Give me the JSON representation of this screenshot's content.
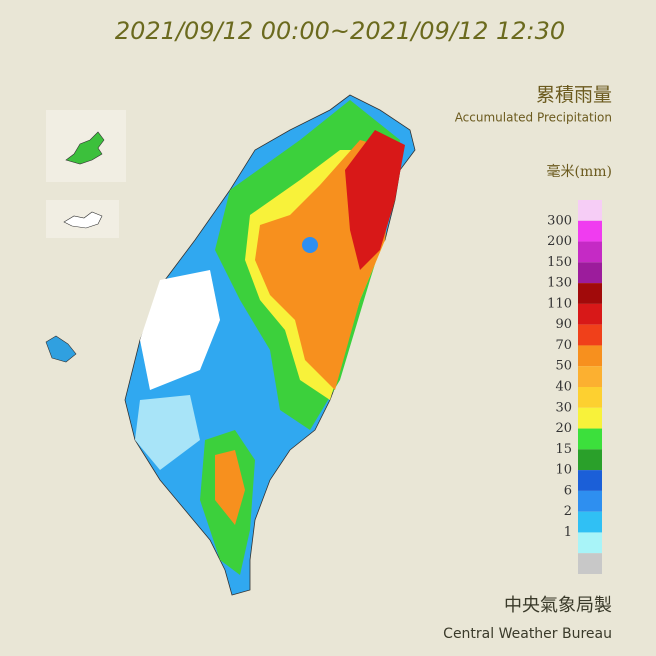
{
  "header": {
    "time_range": "2021/09/12 00:00~2021/09/12 12:30"
  },
  "title": {
    "zh": "累積雨量",
    "en": "Accumulated Precipitation"
  },
  "legend": {
    "unit": "毫米(mm)",
    "labels": [
      300,
      200,
      150,
      130,
      110,
      90,
      70,
      50,
      40,
      30,
      20,
      15,
      10,
      6,
      2,
      1
    ],
    "colors": [
      "#f6cdf6",
      "#f03cf0",
      "#c52ac5",
      "#9c1c9c",
      "#a10a0a",
      "#d81818",
      "#f0401a",
      "#f7901e",
      "#fcb030",
      "#fdd030",
      "#f8f23a",
      "#3ce03c",
      "#2aa02a",
      "#1b5fd8",
      "#2e8ff0",
      "#30c0f4",
      "#a8f4f8",
      "#c8c8c8"
    ]
  },
  "footer": {
    "zh": "中央氣象局製",
    "en": "Central Weather Bureau"
  }
}
